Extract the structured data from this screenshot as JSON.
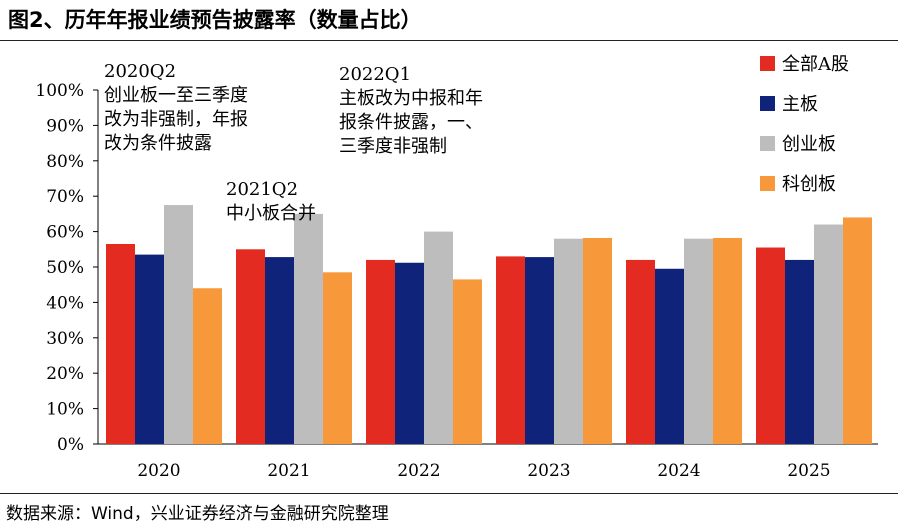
{
  "figure": {
    "title": "图2、历年年报业绩预告披露率（数量占比）",
    "source": "数据来源：Wind，兴业证券经济与金融研究院整理"
  },
  "annotations": [
    {
      "title": "2020Q2",
      "lines": [
        "创业板一至三季度",
        "改为非强制，年报",
        "改为条件披露"
      ]
    },
    {
      "title": "2021Q2",
      "lines": [
        "中小板合并"
      ]
    },
    {
      "title": "2022Q1",
      "lines": [
        "主板改为中报和年",
        "报条件披露，一、",
        "三季度非强制"
      ]
    }
  ],
  "chart_data": {
    "type": "bar",
    "categories": [
      "2020",
      "2021",
      "2022",
      "2023",
      "2024",
      "2025"
    ],
    "series": [
      {
        "name": "全部A股",
        "color": "#e32b22",
        "values": [
          56.5,
          55.0,
          52.0,
          53.0,
          52.0,
          55.5
        ]
      },
      {
        "name": "主板",
        "color": "#10237a",
        "values": [
          53.5,
          52.8,
          51.2,
          52.8,
          49.5,
          52.0
        ]
      },
      {
        "name": "创业板",
        "color": "#bdbdbd",
        "values": [
          67.5,
          65.0,
          60.0,
          58.0,
          58.0,
          62.0
        ]
      },
      {
        "name": "科创板",
        "color": "#f7993b",
        "values": [
          44.0,
          48.5,
          46.5,
          58.2,
          58.2,
          64.0
        ]
      }
    ],
    "ylim": [
      0,
      100
    ],
    "yticks": [
      "0%",
      "10%",
      "20%",
      "30%",
      "40%",
      "50%",
      "60%",
      "70%",
      "80%",
      "90%",
      "100%"
    ],
    "legend_position": "top-right",
    "grid": false,
    "xlabel": "",
    "ylabel": ""
  }
}
